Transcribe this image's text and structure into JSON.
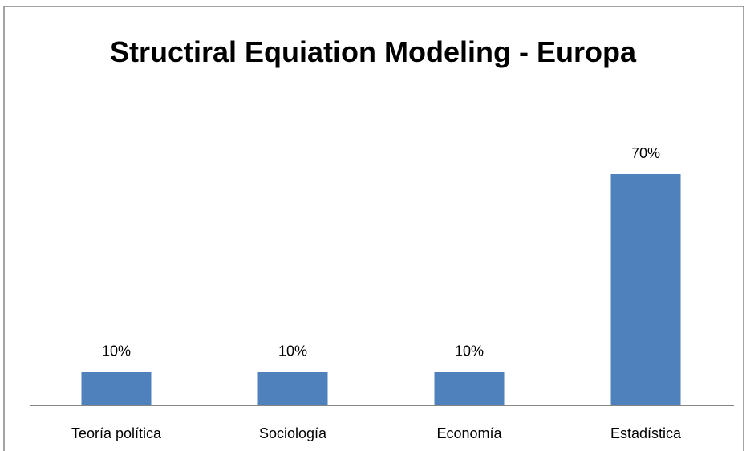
{
  "chart_data": {
    "type": "bar",
    "title": "Structiral Equiation Modeling - Europa",
    "categories": [
      "Teoría política",
      "Sociología",
      "Economía",
      "Estadística"
    ],
    "values": [
      10,
      10,
      10,
      70
    ],
    "value_labels": [
      "10%",
      "10%",
      "10%",
      "70%"
    ],
    "color": "#4f81bd"
  }
}
